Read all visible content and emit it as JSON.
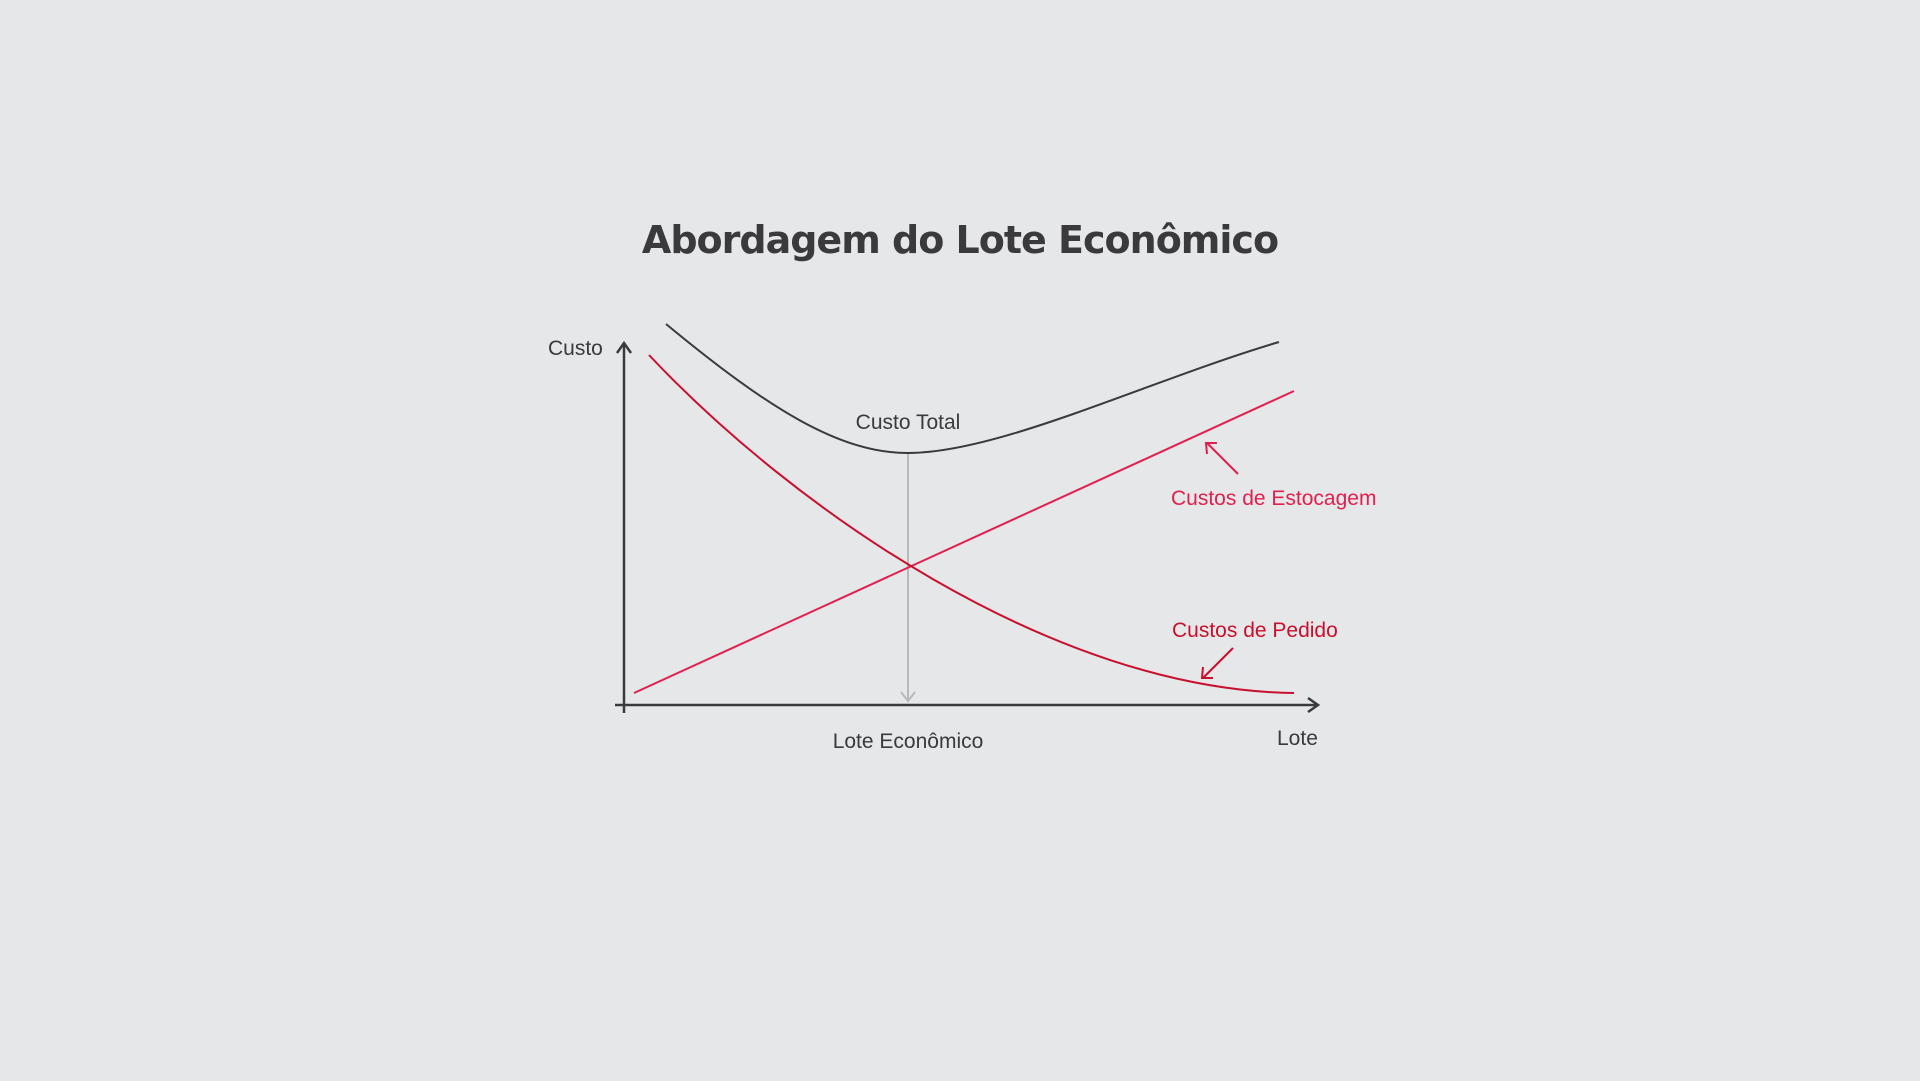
{
  "title": "Abordagem do Lote Econômico",
  "axes": {
    "y_label": "Custo",
    "x_label": "Lote",
    "x_marker_label": "Lote Econômico"
  },
  "curves": {
    "total": {
      "label": "Custo Total",
      "color": "#3a3a3c"
    },
    "holding": {
      "label": "Custos de Estocagem",
      "color": "#e0204e"
    },
    "ordering": {
      "label": "Custos de Pedido",
      "color": "#c8102e"
    }
  },
  "colors": {
    "background": "#e6e7e8",
    "axis": "#3a3a3c",
    "marker_line": "#b8b9bb"
  }
}
